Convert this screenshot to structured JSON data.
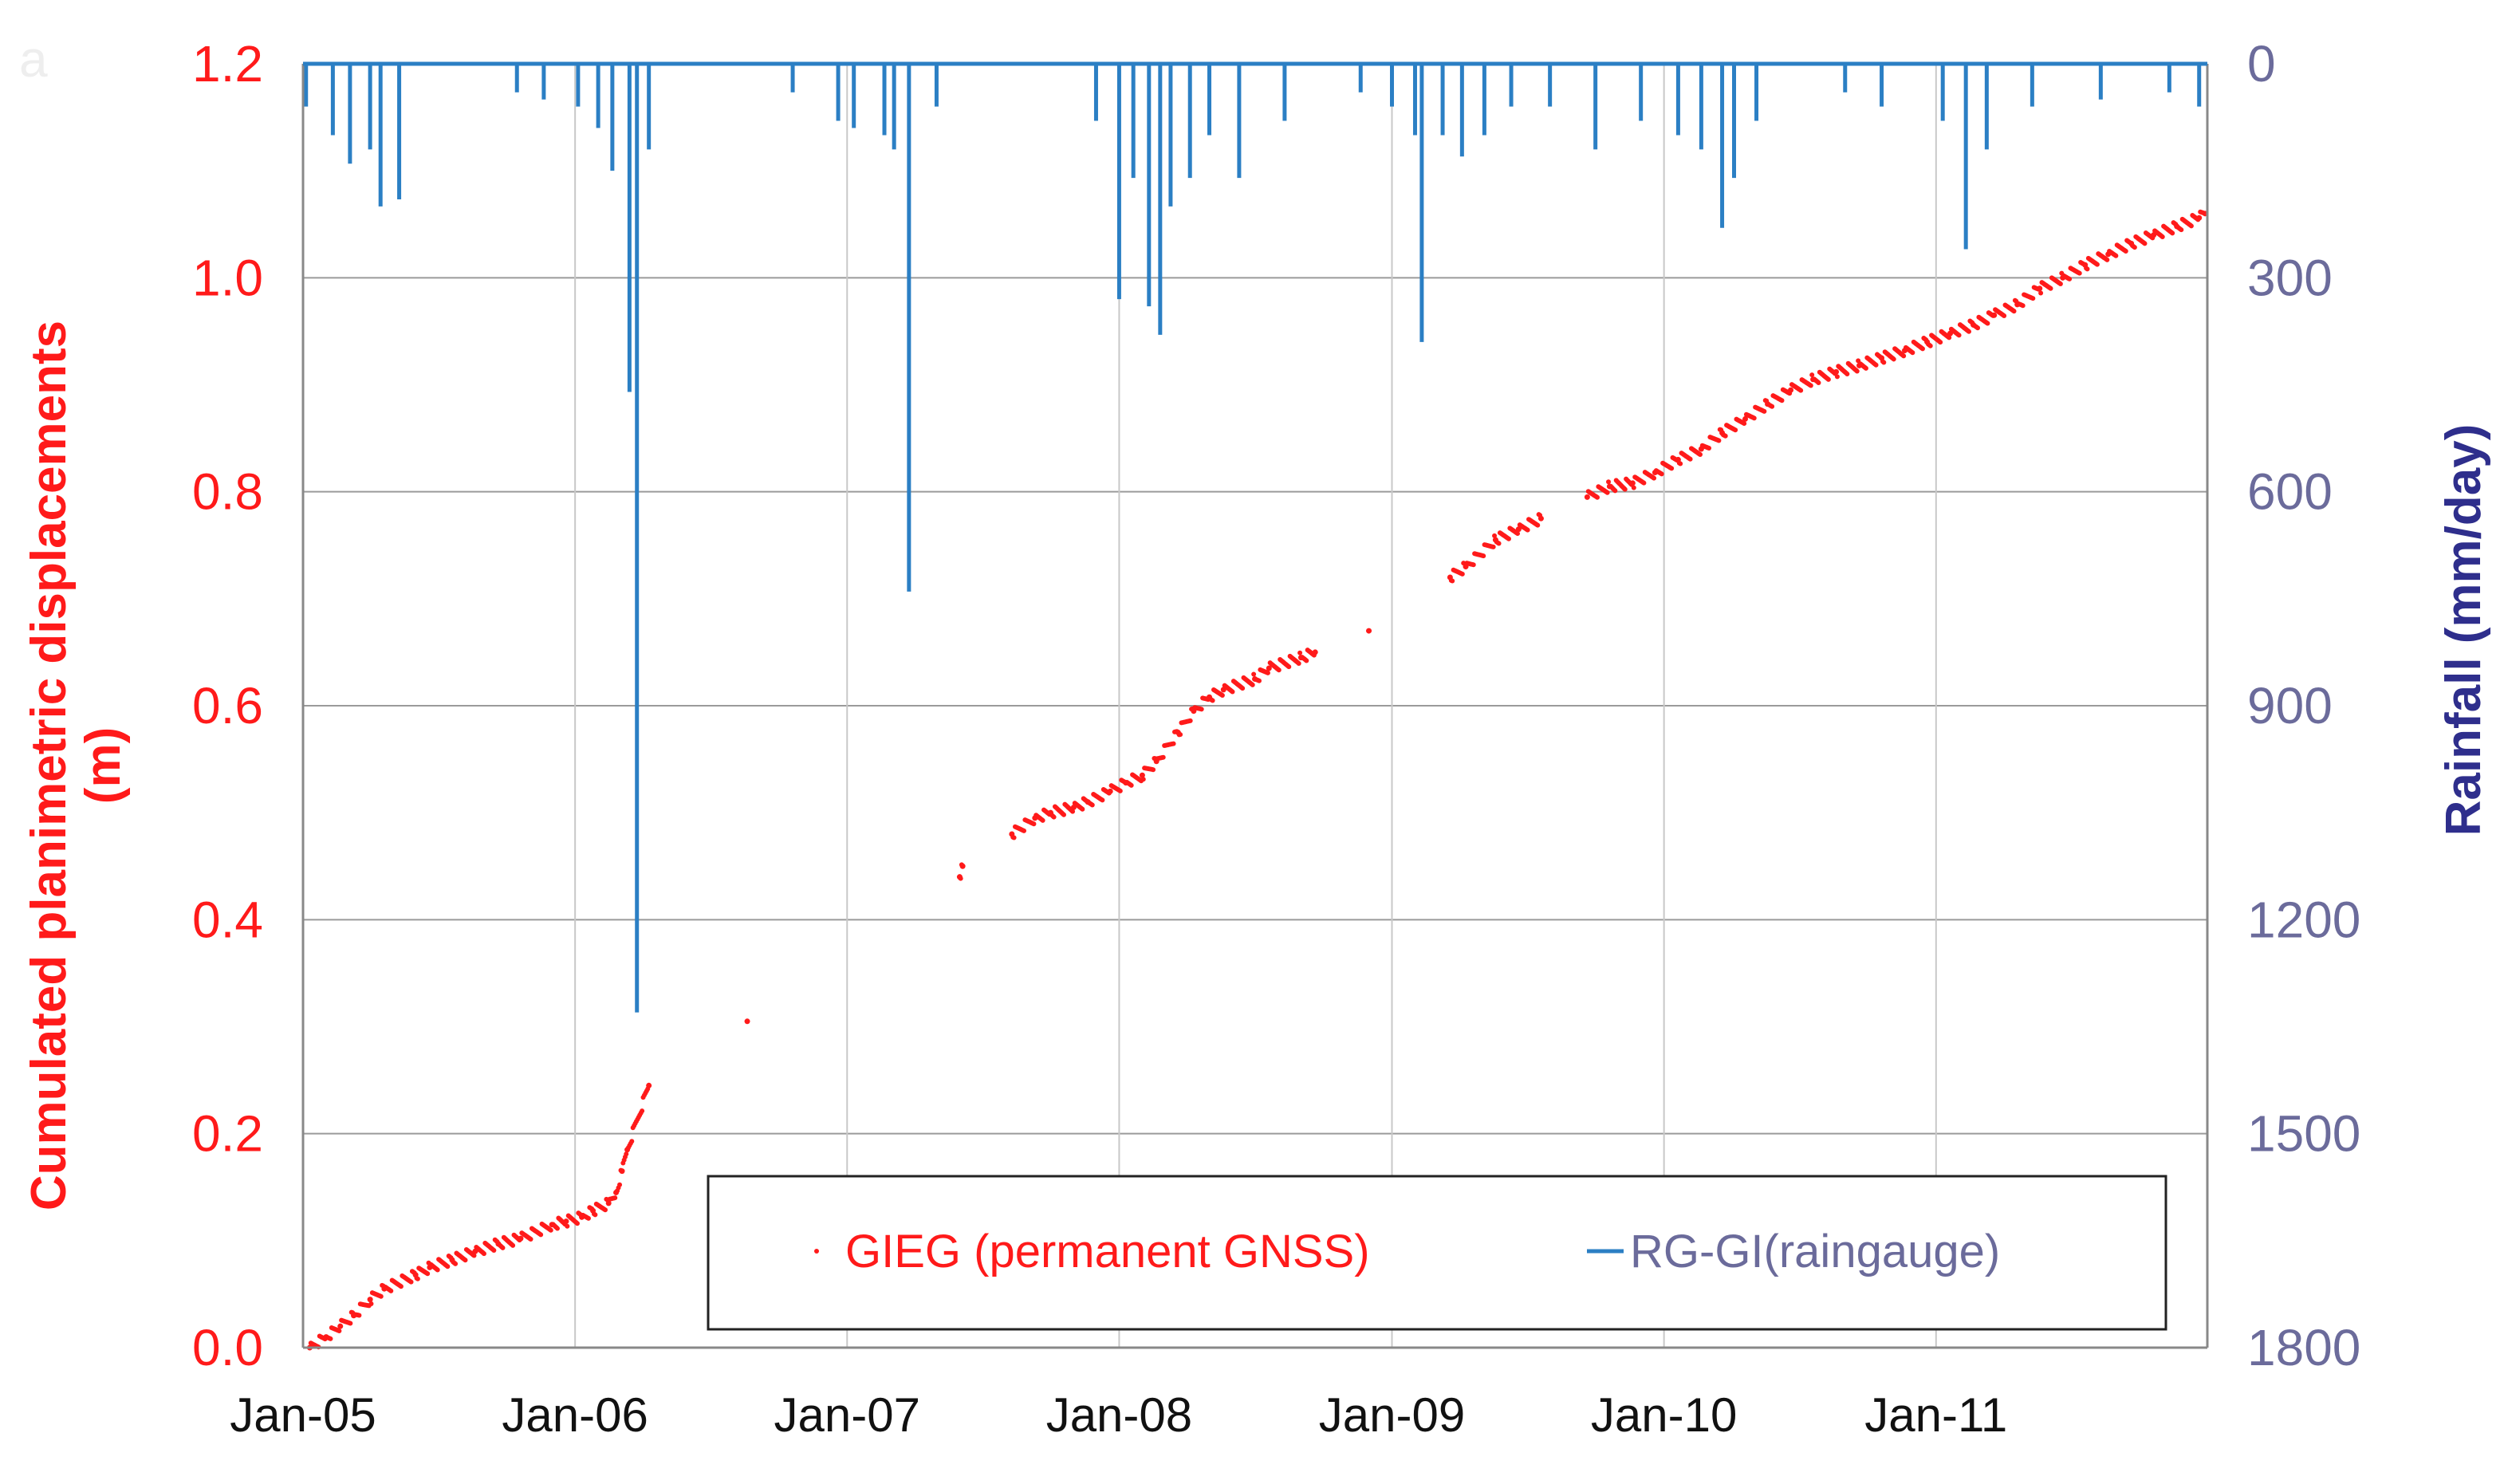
{
  "chart_data": {
    "type": "line",
    "panel_label": "a",
    "ylabel_left": "Cumulated planimetric displacements (m)",
    "ylabel_left_lines": [
      "Cumulated planimetric displacements",
      "(m)"
    ],
    "ylabel_right": "Rainfall (mm/day)",
    "ylim_left": [
      0,
      1.2
    ],
    "yticks_left": [
      "0.0",
      "0.2",
      "0.4",
      "0.6",
      "0.8",
      "1.0",
      "1.2"
    ],
    "ylim_right_inverted": [
      0,
      1800
    ],
    "yticks_right": [
      "0",
      "300",
      "600",
      "900",
      "1200",
      "1500",
      "1800"
    ],
    "xlim": [
      "2005-01-01",
      "2011-12-31"
    ],
    "xticks": [
      "Jan-05",
      "Jan-06",
      "Jan-07",
      "Jan-08",
      "Jan-09",
      "Jan-10",
      "Jan-11"
    ],
    "grid": true,
    "legend_position": "bottom-right",
    "colors": {
      "gnss": "#ff1a1a",
      "rain": "#2b7fc4",
      "left_axis": "#ff1a1a",
      "right_axis": "#6b6b9b",
      "right_label": "#2e2e8c"
    },
    "series": [
      {
        "name": "GIEG (permanent GNSS)",
        "kind": "scatter",
        "axis": "left",
        "points": [
          [
            "2005-01-10",
            0.0
          ],
          [
            "2005-02-01",
            0.01
          ],
          [
            "2005-02-20",
            0.02
          ],
          [
            "2005-03-10",
            0.03
          ],
          [
            "2005-04-01",
            0.045
          ],
          [
            "2005-04-20",
            0.055
          ],
          [
            "2005-06-01",
            0.068
          ],
          [
            "2005-06-20",
            0.075
          ],
          [
            "2005-07-20",
            0.082
          ],
          [
            "2005-08-20",
            0.09
          ],
          [
            "2005-09-20",
            0.097
          ],
          [
            "2005-10-20",
            0.102
          ],
          [
            "2005-12-01",
            0.115
          ],
          [
            "2005-12-20",
            0.118
          ],
          [
            "2006-01-10",
            0.122
          ],
          [
            "2006-01-25",
            0.128
          ],
          [
            "2006-02-15",
            0.135
          ],
          [
            "2006-02-25",
            0.145
          ],
          [
            "2006-03-05",
            0.165
          ],
          [
            "2006-03-12",
            0.185
          ],
          [
            "2006-04-10",
            0.245
          ],
          [
            "2006-08-20",
            0.305
          ],
          [
            "2007-06-01",
            0.44
          ],
          [
            "2007-06-05",
            0.45
          ],
          [
            "2007-08-10",
            0.48
          ],
          [
            "2007-09-10",
            0.495
          ],
          [
            "2007-10-01",
            0.5
          ],
          [
            "2007-11-01",
            0.505
          ],
          [
            "2007-11-20",
            0.51
          ],
          [
            "2007-12-20",
            0.52
          ],
          [
            "2008-01-10",
            0.528
          ],
          [
            "2008-02-01",
            0.535
          ],
          [
            "2008-02-20",
            0.548
          ],
          [
            "2008-03-20",
            0.575
          ],
          [
            "2008-04-10",
            0.595
          ],
          [
            "2008-05-01",
            0.608
          ],
          [
            "2008-05-20",
            0.615
          ],
          [
            "2008-07-01",
            0.625
          ],
          [
            "2008-07-20",
            0.635
          ],
          [
            "2008-09-01",
            0.645
          ],
          [
            "2008-09-20",
            0.65
          ],
          [
            "2008-12-01",
            0.67
          ],
          [
            "2009-03-20",
            0.72
          ],
          [
            "2009-04-10",
            0.73
          ],
          [
            "2009-05-20",
            0.755
          ],
          [
            "2009-06-20",
            0.765
          ],
          [
            "2009-07-20",
            0.775
          ],
          [
            "2009-09-20",
            0.795
          ],
          [
            "2009-10-20",
            0.805
          ],
          [
            "2009-11-20",
            0.808
          ],
          [
            "2009-12-20",
            0.818
          ],
          [
            "2010-01-20",
            0.83
          ],
          [
            "2010-02-20",
            0.84
          ],
          [
            "2010-03-20",
            0.855
          ],
          [
            "2010-04-20",
            0.868
          ],
          [
            "2010-05-20",
            0.882
          ],
          [
            "2010-06-20",
            0.895
          ],
          [
            "2010-07-20",
            0.905
          ],
          [
            "2010-08-20",
            0.912
          ],
          [
            "2010-09-20",
            0.918
          ],
          [
            "2010-10-20",
            0.925
          ],
          [
            "2010-11-20",
            0.932
          ],
          [
            "2010-12-20",
            0.94
          ],
          [
            "2011-01-20",
            0.948
          ],
          [
            "2011-02-20",
            0.956
          ],
          [
            "2011-03-20",
            0.965
          ],
          [
            "2011-04-20",
            0.975
          ],
          [
            "2011-05-20",
            0.99
          ],
          [
            "2011-06-20",
            1.0
          ],
          [
            "2011-07-20",
            1.012
          ],
          [
            "2011-08-20",
            1.022
          ],
          [
            "2011-09-20",
            1.032
          ],
          [
            "2011-10-20",
            1.04
          ],
          [
            "2011-11-20",
            1.048
          ],
          [
            "2011-12-20",
            1.056
          ],
          [
            "2011-12-28",
            1.06
          ]
        ]
      },
      {
        "name": "RG-GI(raingauge)",
        "kind": "bar",
        "axis": "right",
        "peaks": [
          [
            "2005-01-05",
            60
          ],
          [
            "2005-02-10",
            100
          ],
          [
            "2005-03-05",
            140
          ],
          [
            "2005-04-01",
            120
          ],
          [
            "2005-04-15",
            200
          ],
          [
            "2005-05-10",
            190
          ],
          [
            "2005-10-15",
            40
          ],
          [
            "2005-11-20",
            50
          ],
          [
            "2006-01-05",
            60
          ],
          [
            "2006-02-01",
            90
          ],
          [
            "2006-02-20",
            150
          ],
          [
            "2006-03-15",
            460
          ],
          [
            "2006-03-25",
            1330
          ],
          [
            "2006-04-10",
            120
          ],
          [
            "2006-10-20",
            40
          ],
          [
            "2006-12-20",
            80
          ],
          [
            "2007-01-10",
            90
          ],
          [
            "2007-02-20",
            100
          ],
          [
            "2007-03-05",
            120
          ],
          [
            "2007-03-25",
            740
          ],
          [
            "2007-05-01",
            60
          ],
          [
            "2007-12-01",
            80
          ],
          [
            "2008-01-01",
            330
          ],
          [
            "2008-01-20",
            160
          ],
          [
            "2008-02-10",
            340
          ],
          [
            "2008-02-25",
            380
          ],
          [
            "2008-03-10",
            200
          ],
          [
            "2008-04-05",
            160
          ],
          [
            "2008-05-01",
            100
          ],
          [
            "2008-06-10",
            160
          ],
          [
            "2008-08-10",
            80
          ],
          [
            "2008-11-20",
            40
          ],
          [
            "2009-01-01",
            60
          ],
          [
            "2009-02-01",
            100
          ],
          [
            "2009-02-10",
            390
          ],
          [
            "2009-03-10",
            100
          ],
          [
            "2009-04-05",
            130
          ],
          [
            "2009-05-05",
            100
          ],
          [
            "2009-06-10",
            60
          ],
          [
            "2009-08-01",
            60
          ],
          [
            "2009-10-01",
            120
          ],
          [
            "2009-12-01",
            80
          ],
          [
            "2010-01-20",
            100
          ],
          [
            "2010-02-20",
            120
          ],
          [
            "2010-03-20",
            230
          ],
          [
            "2010-04-05",
            160
          ],
          [
            "2010-05-05",
            80
          ],
          [
            "2010-09-01",
            40
          ],
          [
            "2010-10-20",
            60
          ],
          [
            "2011-01-10",
            80
          ],
          [
            "2011-02-10",
            260
          ],
          [
            "2011-03-10",
            120
          ],
          [
            "2011-05-10",
            60
          ],
          [
            "2011-08-10",
            50
          ],
          [
            "2011-11-10",
            40
          ],
          [
            "2011-12-20",
            60
          ]
        ]
      }
    ]
  }
}
